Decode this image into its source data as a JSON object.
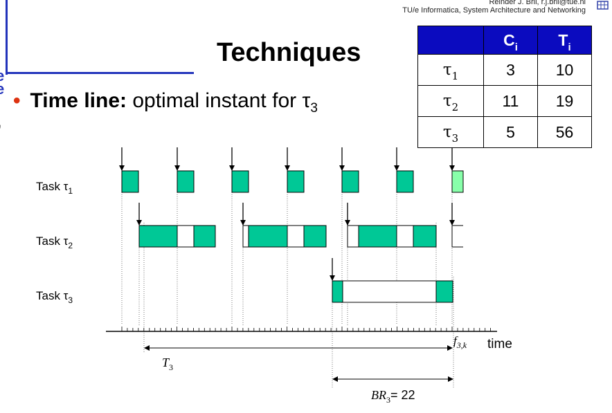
{
  "header": {
    "author_line": "Reinder J. Bril, r.j.bril@tue.nl",
    "affiliation_line": "TU/e Informatica, System Architecture and Networking"
  },
  "page_edge_fragments": [
    "e",
    "e",
    "ʼ"
  ],
  "title": "Techniques",
  "bullet": {
    "label": "Time line:",
    "text": " optimal instant for τ",
    "subscript": "3"
  },
  "table": {
    "columns": [
      {
        "main": "",
        "sub": ""
      },
      {
        "main": "C",
        "sub": "i"
      },
      {
        "main": "T",
        "sub": "i"
      }
    ],
    "rows": [
      {
        "task": "τ",
        "sub": "1",
        "C": "3",
        "T": "10"
      },
      {
        "task": "τ",
        "sub": "2",
        "C": "11",
        "T": "19"
      },
      {
        "task": "τ",
        "sub": "3",
        "C": "5",
        "T": "56"
      }
    ]
  },
  "timeline": {
    "task_labels": [
      {
        "text": "Task τ",
        "sub": "1"
      },
      {
        "text": "Task τ",
        "sub": "2"
      },
      {
        "text": "Task τ",
        "sub": "3"
      }
    ],
    "axis_label": "time",
    "finish_label": "f",
    "finish_sub": "3,k",
    "period_label": "T",
    "period_sub": "3",
    "response_label": "BR",
    "response_sub": "3",
    "response_value": "= 22",
    "colors": {
      "exec": "#00c896",
      "exec_light": "#88ffaa",
      "preempted": "#ffffff",
      "axis": "#000000"
    }
  }
}
